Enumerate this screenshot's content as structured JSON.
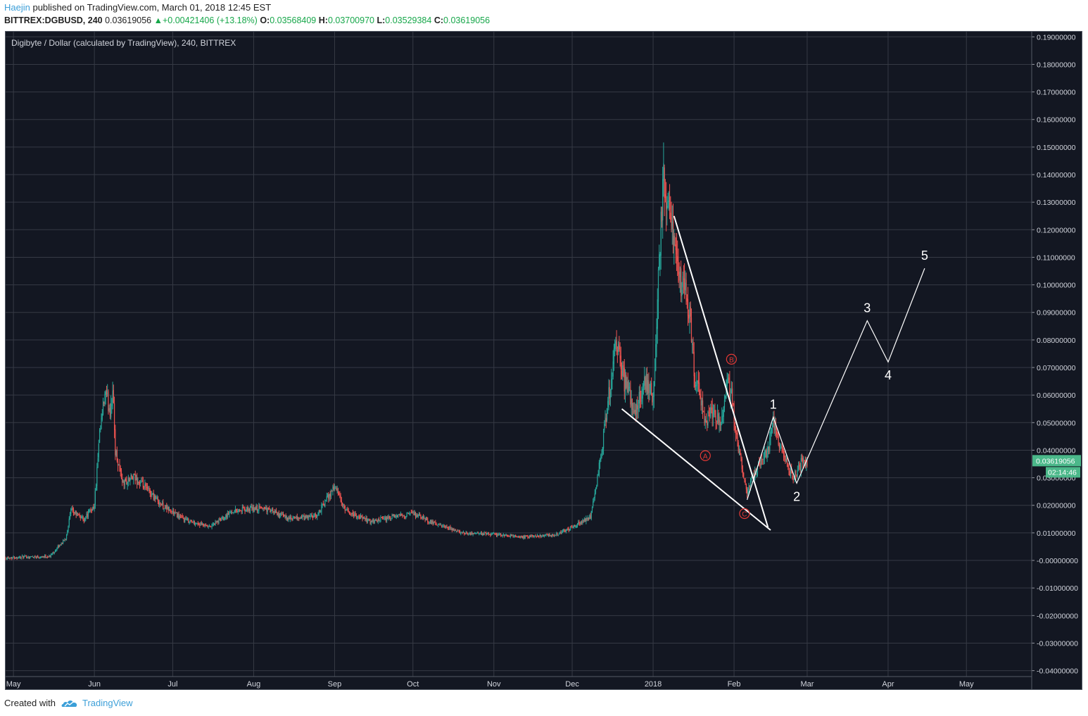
{
  "header": {
    "author": "Haejin",
    "published_text": " published on TradingView.com, March 01, 2018 12:45 EST",
    "symbol": "BITTREX:DGBUSD, 240",
    "price": "0.03619056",
    "change_icon": "up-triangle-icon",
    "change": "+0.00421406 (+13.18%)",
    "o_label": "O:",
    "o_value": "0.03568409",
    "h_label": "H:",
    "h_value": "0.03700970",
    "l_label": "L:",
    "l_value": "0.03529384",
    "c_label": "C:",
    "c_value": "0.03619056"
  },
  "footer": {
    "created_with": "Created with",
    "brand": "TradingView",
    "logo_icon": "tradingview-cloud-icon"
  },
  "colors": {
    "background": "#131722",
    "grid": "#363a45",
    "candle_up": "#26a69a",
    "candle_down": "#ef5350",
    "annotation": "#ffffff",
    "wave_abc": "#e53935",
    "price_tag": "#4bb88a",
    "accent": "#3c9fd8"
  },
  "chart_data": {
    "type": "candlestick",
    "title": "Digibyte / Dollar (calculated by TradingView), 240, BITTREX",
    "symbol": "DGBUSD",
    "exchange": "BITTREX",
    "interval": "240",
    "yaxis": {
      "ticks": [
        "0.19000000",
        "0.18000000",
        "0.17000000",
        "0.16000000",
        "0.15000000",
        "0.14000000",
        "0.13000000",
        "0.12000000",
        "0.11000000",
        "0.10000000",
        "0.09000000",
        "0.08000000",
        "0.07000000",
        "0.06000000",
        "0.05000000",
        "0.04000000",
        "0.03000000",
        "0.02000000",
        "0.01000000",
        "-0.00000000",
        "-0.01000000",
        "-0.02000000",
        "-0.03000000",
        "-0.04000000"
      ],
      "ylim": [
        -0.04,
        0.19
      ],
      "scale": "linear"
    },
    "xaxis": {
      "ticks": [
        "May",
        "Jun",
        "Jul",
        "Aug",
        "Sep",
        "Oct",
        "Nov",
        "Dec",
        "2018",
        "Feb",
        "Mar",
        "Apr",
        "May"
      ],
      "range": [
        "2017-04-28",
        "2018-05-26"
      ]
    },
    "grid": true,
    "last_price": "0.03619056",
    "countdown": "02:14:46",
    "price_path": [
      [
        "2017-04-28",
        0.001
      ],
      [
        "2017-05-15",
        0.0015
      ],
      [
        "2017-05-21",
        0.008
      ],
      [
        "2017-05-23",
        0.018
      ],
      [
        "2017-05-28",
        0.015
      ],
      [
        "2017-06-01",
        0.02
      ],
      [
        "2017-06-03",
        0.045
      ],
      [
        "2017-06-05",
        0.06
      ],
      [
        "2017-06-07",
        0.055
      ],
      [
        "2017-06-08",
        0.062
      ],
      [
        "2017-06-09",
        0.04
      ],
      [
        "2017-06-12",
        0.028
      ],
      [
        "2017-06-16",
        0.03
      ],
      [
        "2017-06-22",
        0.025
      ],
      [
        "2017-06-27",
        0.02
      ],
      [
        "2017-07-05",
        0.015
      ],
      [
        "2017-07-15",
        0.012
      ],
      [
        "2017-07-24",
        0.018
      ],
      [
        "2017-08-05",
        0.019
      ],
      [
        "2017-08-15",
        0.015
      ],
      [
        "2017-08-25",
        0.016
      ],
      [
        "2017-09-01",
        0.027
      ],
      [
        "2017-09-05",
        0.018
      ],
      [
        "2017-09-15",
        0.014
      ],
      [
        "2017-09-25",
        0.016
      ],
      [
        "2017-10-01",
        0.017
      ],
      [
        "2017-10-10",
        0.013
      ],
      [
        "2017-10-20",
        0.01
      ],
      [
        "2017-11-01",
        0.0095
      ],
      [
        "2017-11-12",
        0.0085
      ],
      [
        "2017-11-25",
        0.0095
      ],
      [
        "2017-12-01",
        0.012
      ],
      [
        "2017-12-08",
        0.016
      ],
      [
        "2017-12-10",
        0.025
      ],
      [
        "2017-12-13",
        0.045
      ],
      [
        "2017-12-15",
        0.06
      ],
      [
        "2017-12-18",
        0.08
      ],
      [
        "2017-12-21",
        0.065
      ],
      [
        "2017-12-25",
        0.055
      ],
      [
        "2017-12-29",
        0.065
      ],
      [
        "2018-01-01",
        0.06
      ],
      [
        "2018-01-03",
        0.1
      ],
      [
        "2018-01-05",
        0.14
      ],
      [
        "2018-01-07",
        0.125
      ],
      [
        "2018-01-09",
        0.12
      ],
      [
        "2018-01-11",
        0.1
      ],
      [
        "2018-01-13",
        0.1
      ],
      [
        "2018-01-15",
        0.09
      ],
      [
        "2018-01-17",
        0.065
      ],
      [
        "2018-01-19",
        0.06
      ],
      [
        "2018-01-21",
        0.05
      ],
      [
        "2018-01-24",
        0.055
      ],
      [
        "2018-01-27",
        0.05
      ],
      [
        "2018-01-29",
        0.065
      ],
      [
        "2018-01-31",
        0.06
      ],
      [
        "2018-02-02",
        0.045
      ],
      [
        "2018-02-04",
        0.035
      ],
      [
        "2018-02-06",
        0.025
      ],
      [
        "2018-02-08",
        0.03
      ],
      [
        "2018-02-11",
        0.035
      ],
      [
        "2018-02-14",
        0.04
      ],
      [
        "2018-02-16",
        0.05
      ],
      [
        "2018-02-19",
        0.04
      ],
      [
        "2018-02-22",
        0.033
      ],
      [
        "2018-02-24",
        0.03
      ],
      [
        "2018-02-27",
        0.036
      ],
      [
        "2018-03-01",
        0.0362
      ]
    ],
    "annotations": {
      "wedge_lines": [
        {
          "from": [
            "2018-01-09",
            0.125
          ],
          "to": [
            "2018-02-14",
            0.012
          ]
        },
        {
          "from": [
            "2017-12-20",
            0.055
          ],
          "to": [
            "2018-02-15",
            0.011
          ]
        }
      ],
      "abc_labels": [
        {
          "label": "A",
          "point": [
            "2018-01-21",
            0.038
          ]
        },
        {
          "label": "B",
          "point": [
            "2018-01-31",
            0.073
          ]
        },
        {
          "label": "C",
          "point": [
            "2018-02-05",
            0.017
          ]
        }
      ],
      "impulse_path": [
        [
          "2018-02-06",
          0.022
        ],
        [
          "2018-02-16",
          0.052
        ],
        [
          "2018-02-25",
          0.028
        ],
        [
          "2018-03-24",
          0.087
        ],
        [
          "2018-04-01",
          0.072
        ],
        [
          "2018-04-15",
          0.106
        ]
      ],
      "impulse_labels": [
        {
          "label": "1",
          "point": [
            "2018-02-16",
            0.052
          ],
          "position": "above"
        },
        {
          "label": "2",
          "point": [
            "2018-02-25",
            0.028
          ],
          "position": "below"
        },
        {
          "label": "3",
          "point": [
            "2018-03-24",
            0.087
          ],
          "position": "above"
        },
        {
          "label": "4",
          "point": [
            "2018-04-01",
            0.072
          ],
          "position": "below"
        },
        {
          "label": "5",
          "point": [
            "2018-04-15",
            0.106
          ],
          "position": "above"
        }
      ]
    }
  }
}
